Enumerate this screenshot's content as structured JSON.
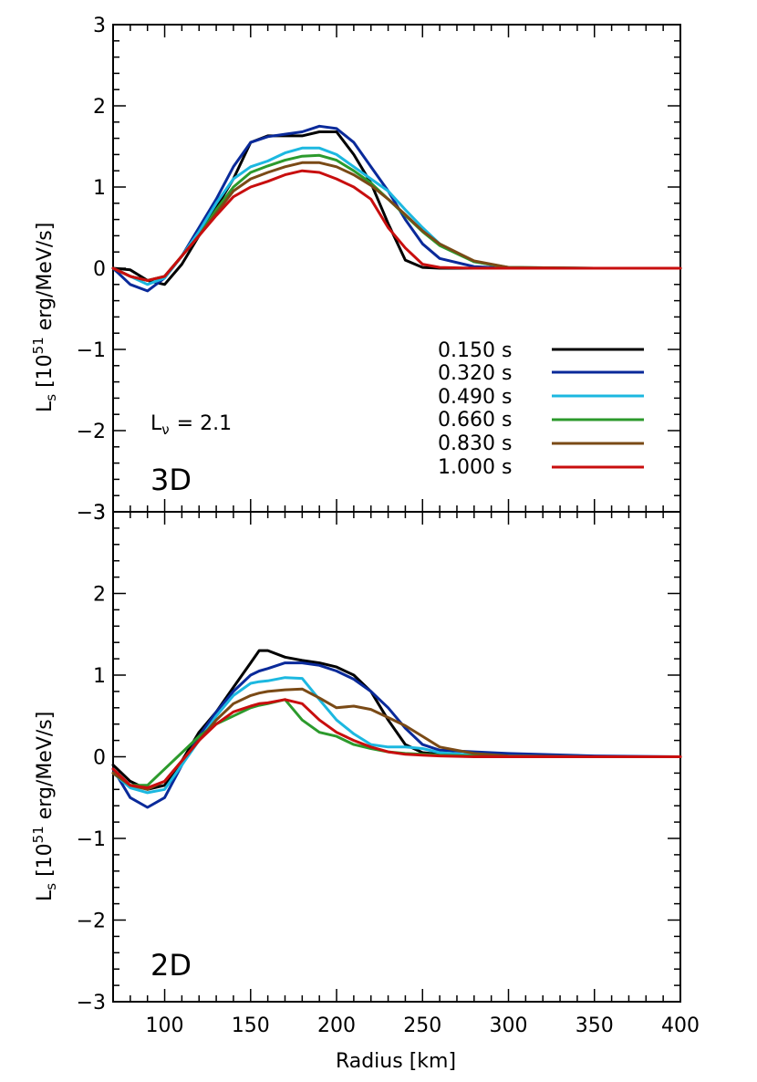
{
  "chart_data": [
    {
      "type": "line",
      "panel_label": "3D",
      "annotation": "Lν = 2.1",
      "annotation_main": "L",
      "annotation_sub": "ν",
      "annotation_rest": "= 2.1",
      "ylabel_main": "L",
      "ylabel_sub": "s",
      "ylabel_rest_a": " [10",
      "ylabel_sup": "51",
      "ylabel_rest_b": " erg/MeV/s]",
      "xlim": [
        70,
        400
      ],
      "ylim": [
        -3,
        3
      ],
      "x_ticks": [
        "100",
        "150",
        "200",
        "250",
        "300",
        "350",
        "400"
      ],
      "y_ticks": [
        "−3",
        "−2",
        "−1",
        "0",
        "1",
        "2",
        "3"
      ],
      "legend_position": "lower-right",
      "series": [
        {
          "name": "0.150 s",
          "color": "#000000",
          "x": [
            70,
            80,
            90,
            100,
            110,
            120,
            130,
            140,
            150,
            160,
            170,
            180,
            190,
            200,
            210,
            220,
            230,
            240,
            250,
            260,
            280,
            300,
            350,
            400
          ],
          "y": [
            0,
            -0.02,
            -0.15,
            -0.2,
            0.05,
            0.4,
            0.75,
            1.1,
            1.55,
            1.63,
            1.63,
            1.63,
            1.68,
            1.68,
            1.4,
            1.05,
            0.55,
            0.1,
            0.01,
            0,
            0,
            0,
            0,
            0
          ]
        },
        {
          "name": "0.320 s",
          "color": "#0a2a9a",
          "x": [
            70,
            80,
            90,
            100,
            110,
            120,
            130,
            140,
            150,
            160,
            170,
            180,
            190,
            200,
            210,
            220,
            230,
            240,
            250,
            260,
            280,
            300,
            350,
            400
          ],
          "y": [
            0,
            -0.2,
            -0.28,
            -0.12,
            0.15,
            0.5,
            0.85,
            1.25,
            1.55,
            1.62,
            1.65,
            1.68,
            1.75,
            1.72,
            1.55,
            1.25,
            0.95,
            0.6,
            0.3,
            0.12,
            0.02,
            0,
            0,
            0
          ]
        },
        {
          "name": "0.490 s",
          "color": "#1cb8e0",
          "x": [
            70,
            80,
            90,
            100,
            110,
            120,
            130,
            140,
            150,
            160,
            170,
            180,
            190,
            200,
            210,
            220,
            230,
            240,
            250,
            260,
            280,
            300,
            350,
            400
          ],
          "y": [
            0,
            -0.1,
            -0.2,
            -0.12,
            0.15,
            0.45,
            0.8,
            1.1,
            1.25,
            1.32,
            1.42,
            1.48,
            1.48,
            1.4,
            1.25,
            1.1,
            0.95,
            0.72,
            0.5,
            0.3,
            0.08,
            0.01,
            0,
            0
          ]
        },
        {
          "name": "0.660 s",
          "color": "#2c9a2c",
          "x": [
            70,
            80,
            90,
            100,
            110,
            120,
            130,
            140,
            150,
            160,
            170,
            180,
            190,
            200,
            210,
            220,
            230,
            240,
            250,
            260,
            280,
            300,
            350,
            400
          ],
          "y": [
            0,
            -0.1,
            -0.15,
            -0.1,
            0.15,
            0.4,
            0.72,
            1.0,
            1.18,
            1.26,
            1.33,
            1.38,
            1.39,
            1.33,
            1.2,
            1.05,
            0.85,
            0.65,
            0.45,
            0.28,
            0.08,
            0.01,
            0,
            0
          ]
        },
        {
          "name": "0.830 s",
          "color": "#7a4a16",
          "x": [
            70,
            80,
            90,
            100,
            110,
            120,
            130,
            140,
            150,
            160,
            170,
            180,
            190,
            200,
            210,
            220,
            230,
            240,
            250,
            260,
            280,
            300,
            350,
            400
          ],
          "y": [
            0,
            -0.1,
            -0.15,
            -0.1,
            0.15,
            0.4,
            0.68,
            0.95,
            1.1,
            1.18,
            1.25,
            1.3,
            1.3,
            1.25,
            1.15,
            1.02,
            0.85,
            0.66,
            0.46,
            0.3,
            0.09,
            0.01,
            0,
            0
          ]
        },
        {
          "name": "1.000 s",
          "color": "#c80e0e",
          "x": [
            70,
            80,
            90,
            100,
            110,
            120,
            130,
            140,
            150,
            160,
            170,
            180,
            190,
            200,
            210,
            220,
            230,
            240,
            250,
            260,
            280,
            300,
            350,
            400
          ],
          "y": [
            0,
            -0.1,
            -0.15,
            -0.1,
            0.15,
            0.4,
            0.65,
            0.88,
            1.0,
            1.07,
            1.15,
            1.2,
            1.18,
            1.1,
            1.0,
            0.85,
            0.5,
            0.25,
            0.05,
            0.01,
            0,
            0,
            0,
            0
          ]
        }
      ]
    },
    {
      "type": "line",
      "panel_label": "2D",
      "xlabel": "Radius [km]",
      "ylabel_main": "L",
      "ylabel_sub": "s",
      "ylabel_rest_a": " [10",
      "ylabel_sup": "51",
      "ylabel_rest_b": " erg/MeV/s]",
      "xlim": [
        70,
        400
      ],
      "ylim": [
        -3,
        3
      ],
      "x_ticks": [
        "100",
        "150",
        "200",
        "250",
        "300",
        "350",
        "400"
      ],
      "y_ticks": [
        "−3",
        "−2",
        "−1",
        "0",
        "1",
        "2",
        "3"
      ],
      "series": [
        {
          "name": "0.150 s",
          "color": "#000000",
          "x": [
            70,
            80,
            90,
            100,
            110,
            120,
            130,
            140,
            150,
            155,
            160,
            170,
            180,
            190,
            200,
            210,
            220,
            230,
            240,
            250,
            260,
            280,
            300,
            350,
            400
          ],
          "y": [
            -0.1,
            -0.3,
            -0.4,
            -0.35,
            -0.05,
            0.3,
            0.55,
            0.85,
            1.15,
            1.3,
            1.3,
            1.22,
            1.18,
            1.15,
            1.1,
            1.0,
            0.8,
            0.45,
            0.15,
            0.05,
            0.03,
            0.02,
            0.01,
            0,
            0
          ]
        },
        {
          "name": "0.320 s",
          "color": "#0a2a9a",
          "x": [
            70,
            80,
            90,
            100,
            110,
            120,
            130,
            140,
            150,
            155,
            160,
            170,
            180,
            190,
            200,
            210,
            220,
            230,
            240,
            250,
            260,
            280,
            300,
            350,
            400
          ],
          "y": [
            -0.15,
            -0.5,
            -0.62,
            -0.5,
            -0.1,
            0.25,
            0.55,
            0.8,
            1.0,
            1.05,
            1.08,
            1.15,
            1.15,
            1.12,
            1.05,
            0.95,
            0.8,
            0.6,
            0.35,
            0.15,
            0.08,
            0.06,
            0.04,
            0.01,
            0
          ]
        },
        {
          "name": "0.490 s",
          "color": "#1cb8e0",
          "x": [
            70,
            80,
            90,
            100,
            110,
            120,
            130,
            140,
            150,
            155,
            160,
            170,
            180,
            190,
            200,
            210,
            220,
            230,
            240,
            250,
            260,
            280,
            300,
            350,
            400
          ],
          "y": [
            -0.2,
            -0.38,
            -0.44,
            -0.4,
            -0.1,
            0.2,
            0.5,
            0.75,
            0.9,
            0.92,
            0.93,
            0.97,
            0.96,
            0.7,
            0.45,
            0.28,
            0.15,
            0.12,
            0.12,
            0.1,
            0.05,
            0.02,
            0.01,
            0,
            0
          ]
        },
        {
          "name": "0.660 s",
          "color": "#2c9a2c",
          "x": [
            70,
            80,
            90,
            100,
            110,
            120,
            130,
            140,
            150,
            155,
            160,
            170,
            180,
            190,
            200,
            210,
            220,
            230,
            240,
            250,
            260,
            280,
            300,
            350,
            400
          ],
          "y": [
            -0.2,
            -0.35,
            -0.35,
            -0.15,
            0.05,
            0.25,
            0.4,
            0.5,
            0.6,
            0.63,
            0.65,
            0.7,
            0.45,
            0.3,
            0.25,
            0.15,
            0.1,
            0.06,
            0.04,
            0.03,
            0.02,
            0.01,
            0,
            0,
            0
          ]
        },
        {
          "name": "0.830 s",
          "color": "#7a4a16",
          "x": [
            70,
            80,
            90,
            100,
            110,
            120,
            130,
            140,
            150,
            155,
            160,
            170,
            180,
            190,
            200,
            210,
            220,
            230,
            240,
            250,
            260,
            280,
            300,
            350,
            400
          ],
          "y": [
            -0.2,
            -0.35,
            -0.4,
            -0.3,
            -0.05,
            0.2,
            0.45,
            0.65,
            0.75,
            0.78,
            0.8,
            0.82,
            0.83,
            0.72,
            0.6,
            0.62,
            0.58,
            0.48,
            0.38,
            0.25,
            0.12,
            0.04,
            0.01,
            0,
            0
          ]
        },
        {
          "name": "1.000 s",
          "color": "#c80e0e",
          "x": [
            70,
            80,
            90,
            100,
            110,
            120,
            130,
            140,
            150,
            155,
            160,
            170,
            180,
            190,
            200,
            210,
            220,
            230,
            240,
            250,
            260,
            280,
            300,
            350,
            400
          ],
          "y": [
            -0.15,
            -0.35,
            -0.38,
            -0.3,
            -0.05,
            0.2,
            0.4,
            0.55,
            0.62,
            0.65,
            0.66,
            0.7,
            0.65,
            0.45,
            0.3,
            0.2,
            0.12,
            0.06,
            0.03,
            0.02,
            0.01,
            0,
            0,
            0,
            0
          ]
        }
      ]
    }
  ]
}
